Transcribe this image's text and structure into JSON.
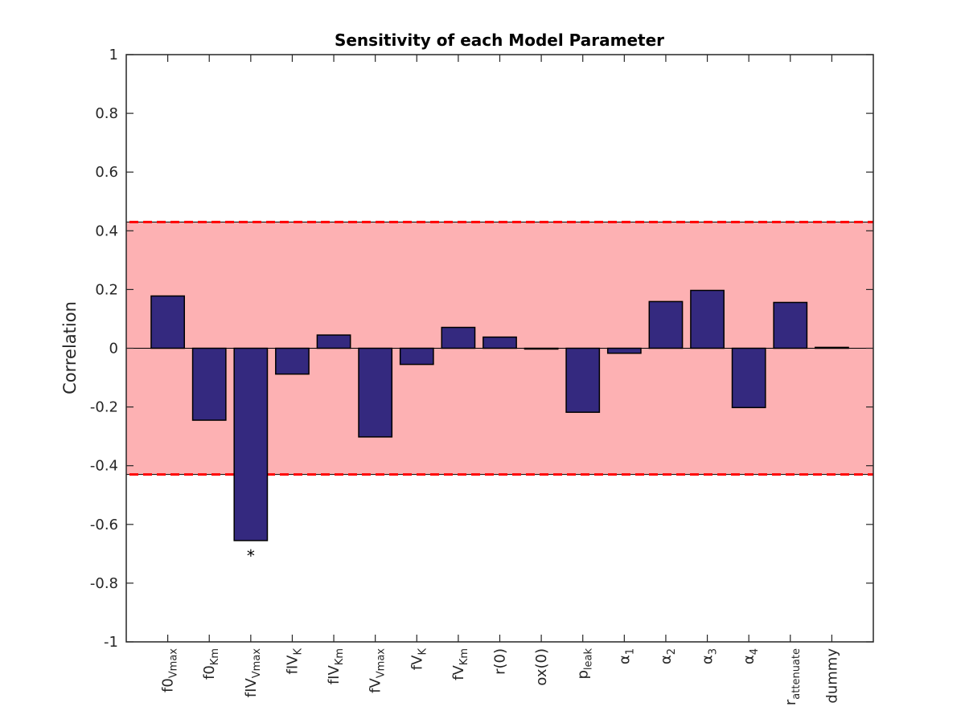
{
  "chart_data": {
    "type": "bar",
    "title": "Sensitivity of each Model Parameter",
    "xlabel": "",
    "ylabel": "Correlation",
    "ylim": [
      -1,
      1
    ],
    "yticks": [
      "1",
      "0.8",
      "0.6",
      "0.4",
      "0.2",
      "0",
      "-0.2",
      "-0.4",
      "-0.6",
      "-0.8",
      "-1"
    ],
    "categories": [
      {
        "base": "f0",
        "sub": "Vmax"
      },
      {
        "base": "f0",
        "sub": "Km"
      },
      {
        "base": "fIV",
        "sub": "Vmax"
      },
      {
        "base": "fIV",
        "sub": "K"
      },
      {
        "base": "fIV",
        "sub": "Km"
      },
      {
        "base": "fV",
        "sub": "Vmax"
      },
      {
        "base": "fV",
        "sub": "K"
      },
      {
        "base": "fV",
        "sub": "Km"
      },
      {
        "base": "r(0)",
        "sub": ""
      },
      {
        "base": "ox(0)",
        "sub": ""
      },
      {
        "base": "p",
        "sub": "leak"
      },
      {
        "base": "α",
        "sub": "1"
      },
      {
        "base": "α",
        "sub": "2"
      },
      {
        "base": "α",
        "sub": "3"
      },
      {
        "base": "α",
        "sub": "4"
      },
      {
        "base": "r",
        "sub": "attenuate"
      },
      {
        "base": "dummy",
        "sub": ""
      }
    ],
    "values": [
      0.178,
      -0.245,
      -0.655,
      -0.088,
      0.045,
      -0.302,
      -0.055,
      0.071,
      0.038,
      -0.002,
      -0.218,
      -0.017,
      0.159,
      0.197,
      -0.202,
      0.156,
      0.003
    ],
    "significance_band": {
      "lower": -0.43,
      "upper": 0.43,
      "fill_color": "#fdb1b3",
      "line_color": "#ff0000"
    },
    "significant_marker": {
      "index": 2,
      "text": "*"
    },
    "bar_color": "#34297f",
    "grid": false,
    "legend": "none"
  }
}
